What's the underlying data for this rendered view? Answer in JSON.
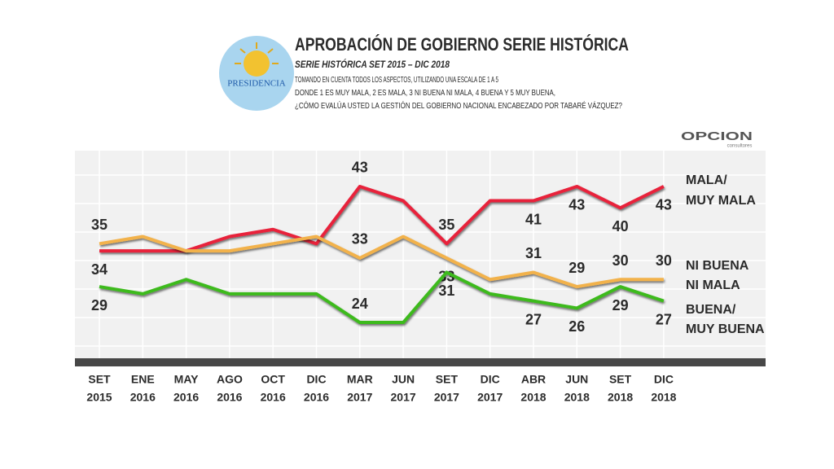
{
  "header": {
    "logo": "PRESIDENCIA",
    "brand": "OPCION",
    "brand_sub": "consultores"
  },
  "chart_data": {
    "type": "line",
    "title": "APROBACIÓN DE GOBIERNO SERIE HISTÓRICA",
    "subtitle": "SERIE HISTÓRICA SET 2015 – DIC 2018",
    "question": [
      "TOMANDO EN CUENTA TODOS LOS ASPECTOS, UTILIZANDO UNA ESCALA DE 1 A 5",
      "DONDE 1 ES MUY MALA, 2 ES MALA, 3 NI BUENA NI MALA, 4 BUENA Y 5 MUY BUENA,",
      "¿CÓMO EVALÚA USTED LA GESTIÓN DEL GOBIERNO NACIONAL ENCABEZADO POR TABARÉ VÁZQUEZ?"
    ],
    "categories": [
      [
        "SET",
        "2015"
      ],
      [
        "ENE",
        "2016"
      ],
      [
        "MAY",
        "2016"
      ],
      [
        "AGO",
        "2016"
      ],
      [
        "OCT",
        "2016"
      ],
      [
        "DIC",
        "2016"
      ],
      [
        "MAR",
        "2017"
      ],
      [
        "JUN",
        "2017"
      ],
      [
        "SET",
        "2017"
      ],
      [
        "DIC",
        "2017"
      ],
      [
        "ABR",
        "2018"
      ],
      [
        "JUN",
        "2018"
      ],
      [
        "SET",
        "2018"
      ],
      [
        "DIC",
        "2018"
      ]
    ],
    "ylim": [
      19,
      48
    ],
    "grid": true,
    "series": [
      {
        "name": [
          "MALA/",
          "MUY MALA"
        ],
        "color": "#e8203a",
        "values": [
          34,
          34,
          34,
          36,
          37,
          35,
          43,
          41,
          35,
          41,
          41,
          43,
          40,
          43
        ],
        "value_labels": [
          "34",
          null,
          null,
          null,
          null,
          null,
          "43",
          null,
          "35",
          null,
          "41",
          "43",
          "40",
          "43"
        ]
      },
      {
        "name": [
          "NI BUENA",
          "NI MALA"
        ],
        "color": "#f2b24c",
        "values": [
          35,
          36,
          34,
          34,
          35,
          36,
          33,
          36,
          33,
          30,
          31,
          29,
          30,
          30
        ],
        "value_labels": [
          "35",
          null,
          null,
          null,
          null,
          null,
          "33",
          null,
          "33",
          null,
          "31",
          "29",
          "30",
          "30"
        ]
      },
      {
        "name": [
          "BUENA/",
          "MUY BUENA"
        ],
        "color": "#3dba1f",
        "values": [
          29,
          28,
          30,
          28,
          28,
          28,
          24,
          24,
          31,
          28,
          27,
          26,
          29,
          27
        ],
        "value_labels": [
          "29",
          null,
          null,
          null,
          null,
          null,
          "24",
          null,
          "31",
          null,
          "27",
          "26",
          "29",
          "27"
        ]
      }
    ]
  }
}
